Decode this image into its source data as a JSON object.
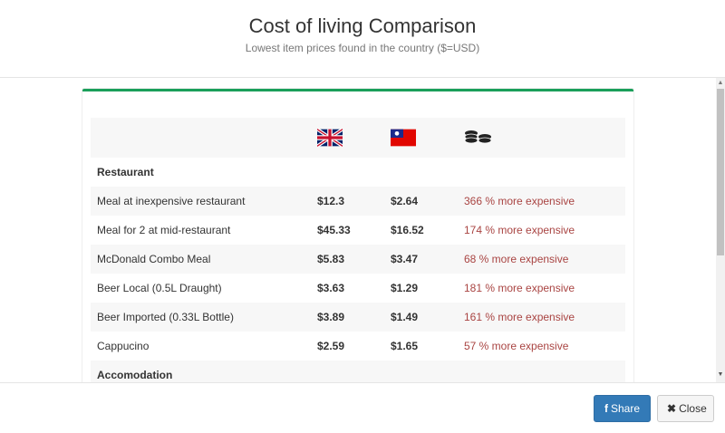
{
  "header": {
    "title": "Cost of living Comparison",
    "subtitle": "Lowest item prices found in the country ($=USD)"
  },
  "table": {
    "columns": [
      {
        "icon": "uk-flag-icon"
      },
      {
        "icon": "taiwan-flag-icon"
      },
      {
        "icon": "coins-icon"
      }
    ],
    "rows": [
      {
        "type": "section",
        "label": "Restaurant"
      },
      {
        "type": "item",
        "label": "Meal at inexpensive restaurant",
        "uk": "$12.3",
        "tw": "$2.64",
        "diff": "366 % more expensive"
      },
      {
        "type": "item",
        "label": "Meal for 2 at mid-restaurant",
        "uk": "$45.33",
        "tw": "$16.52",
        "diff": "174 % more expensive"
      },
      {
        "type": "item",
        "label": "McDonald Combo Meal",
        "uk": "$5.83",
        "tw": "$3.47",
        "diff": "68 % more expensive"
      },
      {
        "type": "item",
        "label": "Beer Local (0.5L Draught)",
        "uk": "$3.63",
        "tw": "$1.29",
        "diff": "181 % more expensive"
      },
      {
        "type": "item",
        "label": "Beer Imported (0.33L Bottle)",
        "uk": "$3.89",
        "tw": "$1.49",
        "diff": "161 % more expensive"
      },
      {
        "type": "item",
        "label": "Cappucino",
        "uk": "$2.59",
        "tw": "$1.65",
        "diff": "57 % more expensive"
      },
      {
        "type": "section",
        "label": "Accomodation"
      }
    ]
  },
  "footer": {
    "share_label": "Share",
    "close_label": "Close"
  },
  "colors": {
    "accent_bar": "#1a9f5a",
    "diff_text": "#a94442",
    "share_button": "#337ab7"
  }
}
